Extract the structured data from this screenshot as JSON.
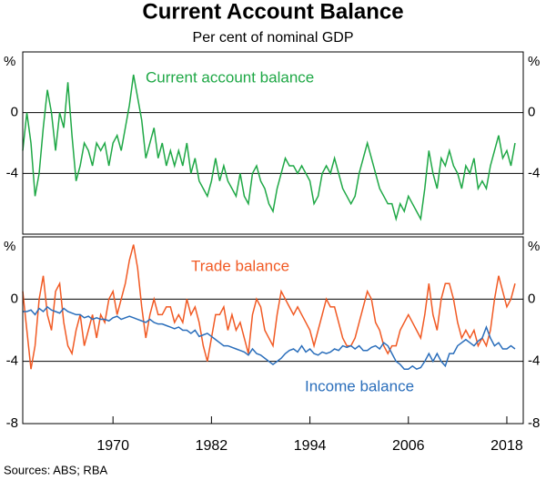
{
  "source": "Sources: ABS; RBA",
  "chart_data": [
    {
      "type": "line",
      "title": "Current Account Balance",
      "subtitle": "Per cent of nominal GDP",
      "y_unit": "%",
      "ylim": [
        -8,
        4
      ],
      "yticks": [
        0,
        -4
      ],
      "x": [
        1959,
        1959.5,
        1960,
        1960.5,
        1961,
        1961.5,
        1962,
        1962.5,
        1963,
        1963.5,
        1964,
        1964.5,
        1965,
        1965.5,
        1966,
        1966.5,
        1967,
        1967.5,
        1968,
        1968.5,
        1969,
        1969.5,
        1970,
        1970.5,
        1971,
        1971.5,
        1972,
        1972.5,
        1973,
        1973.5,
        1974,
        1974.5,
        1975,
        1975.5,
        1976,
        1976.5,
        1977,
        1977.5,
        1978,
        1978.5,
        1979,
        1979.5,
        1980,
        1980.5,
        1981,
        1981.5,
        1982,
        1982.5,
        1983,
        1983.5,
        1984,
        1984.5,
        1985,
        1985.5,
        1986,
        1986.5,
        1987,
        1987.5,
        1988,
        1988.5,
        1989,
        1989.5,
        1990,
        1990.5,
        1991,
        1991.5,
        1992,
        1992.5,
        1993,
        1993.5,
        1994,
        1994.5,
        1995,
        1995.5,
        1996,
        1996.5,
        1997,
        1997.5,
        1998,
        1998.5,
        1999,
        1999.5,
        2000,
        2000.5,
        2001,
        2001.5,
        2002,
        2002.5,
        2003,
        2003.5,
        2004,
        2004.5,
        2005,
        2005.5,
        2006,
        2006.5,
        2007,
        2007.5,
        2008,
        2008.5,
        2009,
        2009.5,
        2010,
        2010.5,
        2011,
        2011.5,
        2012,
        2012.5,
        2013,
        2013.5,
        2014,
        2014.5,
        2015,
        2015.5,
        2016,
        2016.5,
        2017,
        2017.5,
        2018,
        2018.5,
        2019
      ],
      "series": [
        {
          "name": "Current account balance",
          "color": "#1fa846",
          "values": [
            -2.5,
            0,
            -2,
            -5.5,
            -4,
            -1,
            1.5,
            0,
            -2.5,
            0,
            -1,
            2,
            -1.5,
            -4.5,
            -3.5,
            -2,
            -2.5,
            -3.5,
            -2,
            -2.5,
            -2,
            -3.5,
            -2,
            -1.5,
            -2.5,
            -1,
            0.5,
            2.5,
            1,
            -0.5,
            -3,
            -2,
            -1,
            -3,
            -2,
            -3.5,
            -2.5,
            -3.5,
            -2.5,
            -3.5,
            -2,
            -4,
            -3,
            -4.5,
            -5,
            -5.5,
            -4.5,
            -3,
            -4.5,
            -3.5,
            -4.5,
            -5,
            -5.5,
            -4,
            -5.5,
            -6,
            -4,
            -3.5,
            -4.5,
            -5,
            -6,
            -6.5,
            -5,
            -4,
            -3,
            -3.5,
            -3.5,
            -4,
            -3.5,
            -4,
            -4.5,
            -6,
            -5.5,
            -4,
            -3.5,
            -4,
            -3,
            -4,
            -5,
            -5.5,
            -6,
            -5.5,
            -4,
            -3,
            -2,
            -3,
            -4,
            -5,
            -5.5,
            -6,
            -6,
            -7,
            -6,
            -6.5,
            -5.5,
            -6,
            -6.5,
            -7,
            -5,
            -2.5,
            -4,
            -5,
            -3,
            -3.5,
            -2.5,
            -3.5,
            -4,
            -5,
            -3.5,
            -4,
            -3,
            -5,
            -4.5,
            -5,
            -3.5,
            -2.5,
            -1.5,
            -3,
            -2.5,
            -3.5,
            -2
          ]
        }
      ]
    },
    {
      "type": "line",
      "y_unit": "%",
      "ylim": [
        -8,
        4
      ],
      "yticks": [
        0,
        -4,
        -8
      ],
      "xlim": [
        1959,
        2020
      ],
      "xticks": [
        1970,
        1982,
        1994,
        2006,
        2018
      ],
      "x": [
        1959,
        1959.5,
        1960,
        1960.5,
        1961,
        1961.5,
        1962,
        1962.5,
        1963,
        1963.5,
        1964,
        1964.5,
        1965,
        1965.5,
        1966,
        1966.5,
        1967,
        1967.5,
        1968,
        1968.5,
        1969,
        1969.5,
        1970,
        1970.5,
        1971,
        1971.5,
        1972,
        1972.5,
        1973,
        1973.5,
        1974,
        1974.5,
        1975,
        1975.5,
        1976,
        1976.5,
        1977,
        1977.5,
        1978,
        1978.5,
        1979,
        1979.5,
        1980,
        1980.5,
        1981,
        1981.5,
        1982,
        1982.5,
        1983,
        1983.5,
        1984,
        1984.5,
        1985,
        1985.5,
        1986,
        1986.5,
        1987,
        1987.5,
        1988,
        1988.5,
        1989,
        1989.5,
        1990,
        1990.5,
        1991,
        1991.5,
        1992,
        1992.5,
        1993,
        1993.5,
        1994,
        1994.5,
        1995,
        1995.5,
        1996,
        1996.5,
        1997,
        1997.5,
        1998,
        1998.5,
        1999,
        1999.5,
        2000,
        2000.5,
        2001,
        2001.5,
        2002,
        2002.5,
        2003,
        2003.5,
        2004,
        2004.5,
        2005,
        2005.5,
        2006,
        2006.5,
        2007,
        2007.5,
        2008,
        2008.5,
        2009,
        2009.5,
        2010,
        2010.5,
        2011,
        2011.5,
        2012,
        2012.5,
        2013,
        2013.5,
        2014,
        2014.5,
        2015,
        2015.5,
        2016,
        2016.5,
        2017,
        2017.5,
        2018,
        2018.5,
        2019
      ],
      "series": [
        {
          "name": "Trade balance",
          "color": "#f15a24",
          "values": [
            0.5,
            -2,
            -4.5,
            -3,
            0,
            1.5,
            -1,
            -2,
            0.5,
            1,
            -1.5,
            -3,
            -3.5,
            -2,
            -1,
            -3,
            -2,
            -1,
            -2.5,
            -1,
            -1.5,
            0,
            0.5,
            -1,
            0,
            1,
            2.5,
            3.5,
            2,
            -0.5,
            -2.5,
            -1,
            0,
            -1,
            -1,
            -0.5,
            -0.5,
            -1.5,
            -1,
            -1.5,
            0,
            -1,
            -0.5,
            -1.5,
            -3,
            -4,
            -2.5,
            -1,
            -1,
            -0.5,
            -2,
            -1,
            -2,
            -1.5,
            -2.5,
            -3.5,
            -1,
            0,
            -0.5,
            -2,
            -2.5,
            -3,
            -1,
            0.5,
            0,
            -0.5,
            -1,
            -0.5,
            -1,
            -1.5,
            -2,
            -3,
            -2,
            -1,
            0,
            -0.5,
            -0.5,
            -1.5,
            -2.5,
            -3,
            -3,
            -2.5,
            -1.5,
            -0.5,
            0.5,
            0,
            -1.5,
            -2,
            -3,
            -3.5,
            -3,
            -3,
            -2,
            -1.5,
            -1,
            -1.5,
            -2,
            -2.5,
            -1,
            1,
            -1,
            -2,
            0,
            1,
            1,
            0,
            -1.5,
            -2.5,
            -2,
            -2.5,
            -2,
            -3,
            -2.5,
            -3,
            -2,
            0,
            1.5,
            0.5,
            -0.5,
            0,
            1
          ]
        },
        {
          "name": "Income balance",
          "color": "#2a6ebb",
          "values": [
            -0.8,
            -0.8,
            -0.7,
            -1,
            -0.6,
            -0.8,
            -0.5,
            -0.7,
            -0.8,
            -0.9,
            -0.6,
            -0.8,
            -0.9,
            -1,
            -1,
            -1.2,
            -1.1,
            -1.3,
            -1.2,
            -1.3,
            -1.3,
            -1.4,
            -1.2,
            -1.1,
            -1.3,
            -1.2,
            -1.1,
            -1.2,
            -1.3,
            -1.4,
            -1.5,
            -1.3,
            -1.5,
            -1.6,
            -1.6,
            -1.7,
            -1.8,
            -1.9,
            -1.8,
            -2,
            -2,
            -2.2,
            -2,
            -2.4,
            -2.3,
            -2.2,
            -2.4,
            -2.6,
            -2.8,
            -3,
            -3,
            -3.1,
            -3.2,
            -3.3,
            -3.4,
            -3.6,
            -3.2,
            -3.5,
            -3.6,
            -3.8,
            -4,
            -4.2,
            -4,
            -3.8,
            -3.5,
            -3.3,
            -3.2,
            -3.4,
            -3,
            -3.4,
            -3.2,
            -3.5,
            -3.6,
            -3.4,
            -3.5,
            -3.4,
            -3.2,
            -3.3,
            -3,
            -3.1,
            -3,
            -3.2,
            -3,
            -3.3,
            -3.3,
            -3.1,
            -3,
            -3.2,
            -2.8,
            -3,
            -3.5,
            -4,
            -4.2,
            -4.5,
            -4.5,
            -4.3,
            -4.5,
            -4.4,
            -4,
            -3.5,
            -4,
            -3.5,
            -4,
            -4.3,
            -3.5,
            -3.5,
            -3,
            -2.8,
            -2.6,
            -2.8,
            -3,
            -2.7,
            -2.5,
            -1.8,
            -2.5,
            -3,
            -2.8,
            -3.2,
            -3.2,
            -3,
            -3.2
          ]
        }
      ]
    }
  ]
}
